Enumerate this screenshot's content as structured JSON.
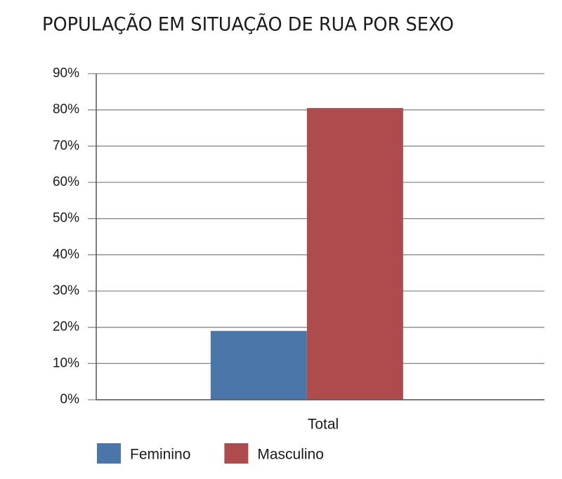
{
  "chart_data": {
    "type": "bar",
    "title": "POPULAÇÃO EM SITUAÇÃO DE RUA POR SEXO",
    "categories": [
      "Total"
    ],
    "series": [
      {
        "name": "Feminino",
        "color": "#4a76aa",
        "values": [
          19
        ]
      },
      {
        "name": "Masculino",
        "color": "#ae4b4c",
        "values": [
          80.5
        ]
      }
    ],
    "ylim": [
      0,
      90
    ],
    "yticks": [
      {
        "value": 0,
        "label": "0%"
      },
      {
        "value": 10,
        "label": "10%"
      },
      {
        "value": 20,
        "label": "20%"
      },
      {
        "value": 30,
        "label": "30%"
      },
      {
        "value": 40,
        "label": "40%"
      },
      {
        "value": 50,
        "label": "50%"
      },
      {
        "value": 60,
        "label": "60%"
      },
      {
        "value": 70,
        "label": "70%"
      },
      {
        "value": 80,
        "label": "80%"
      },
      {
        "value": 90,
        "label": "90%"
      }
    ],
    "grid": true,
    "legend": "bottom"
  }
}
